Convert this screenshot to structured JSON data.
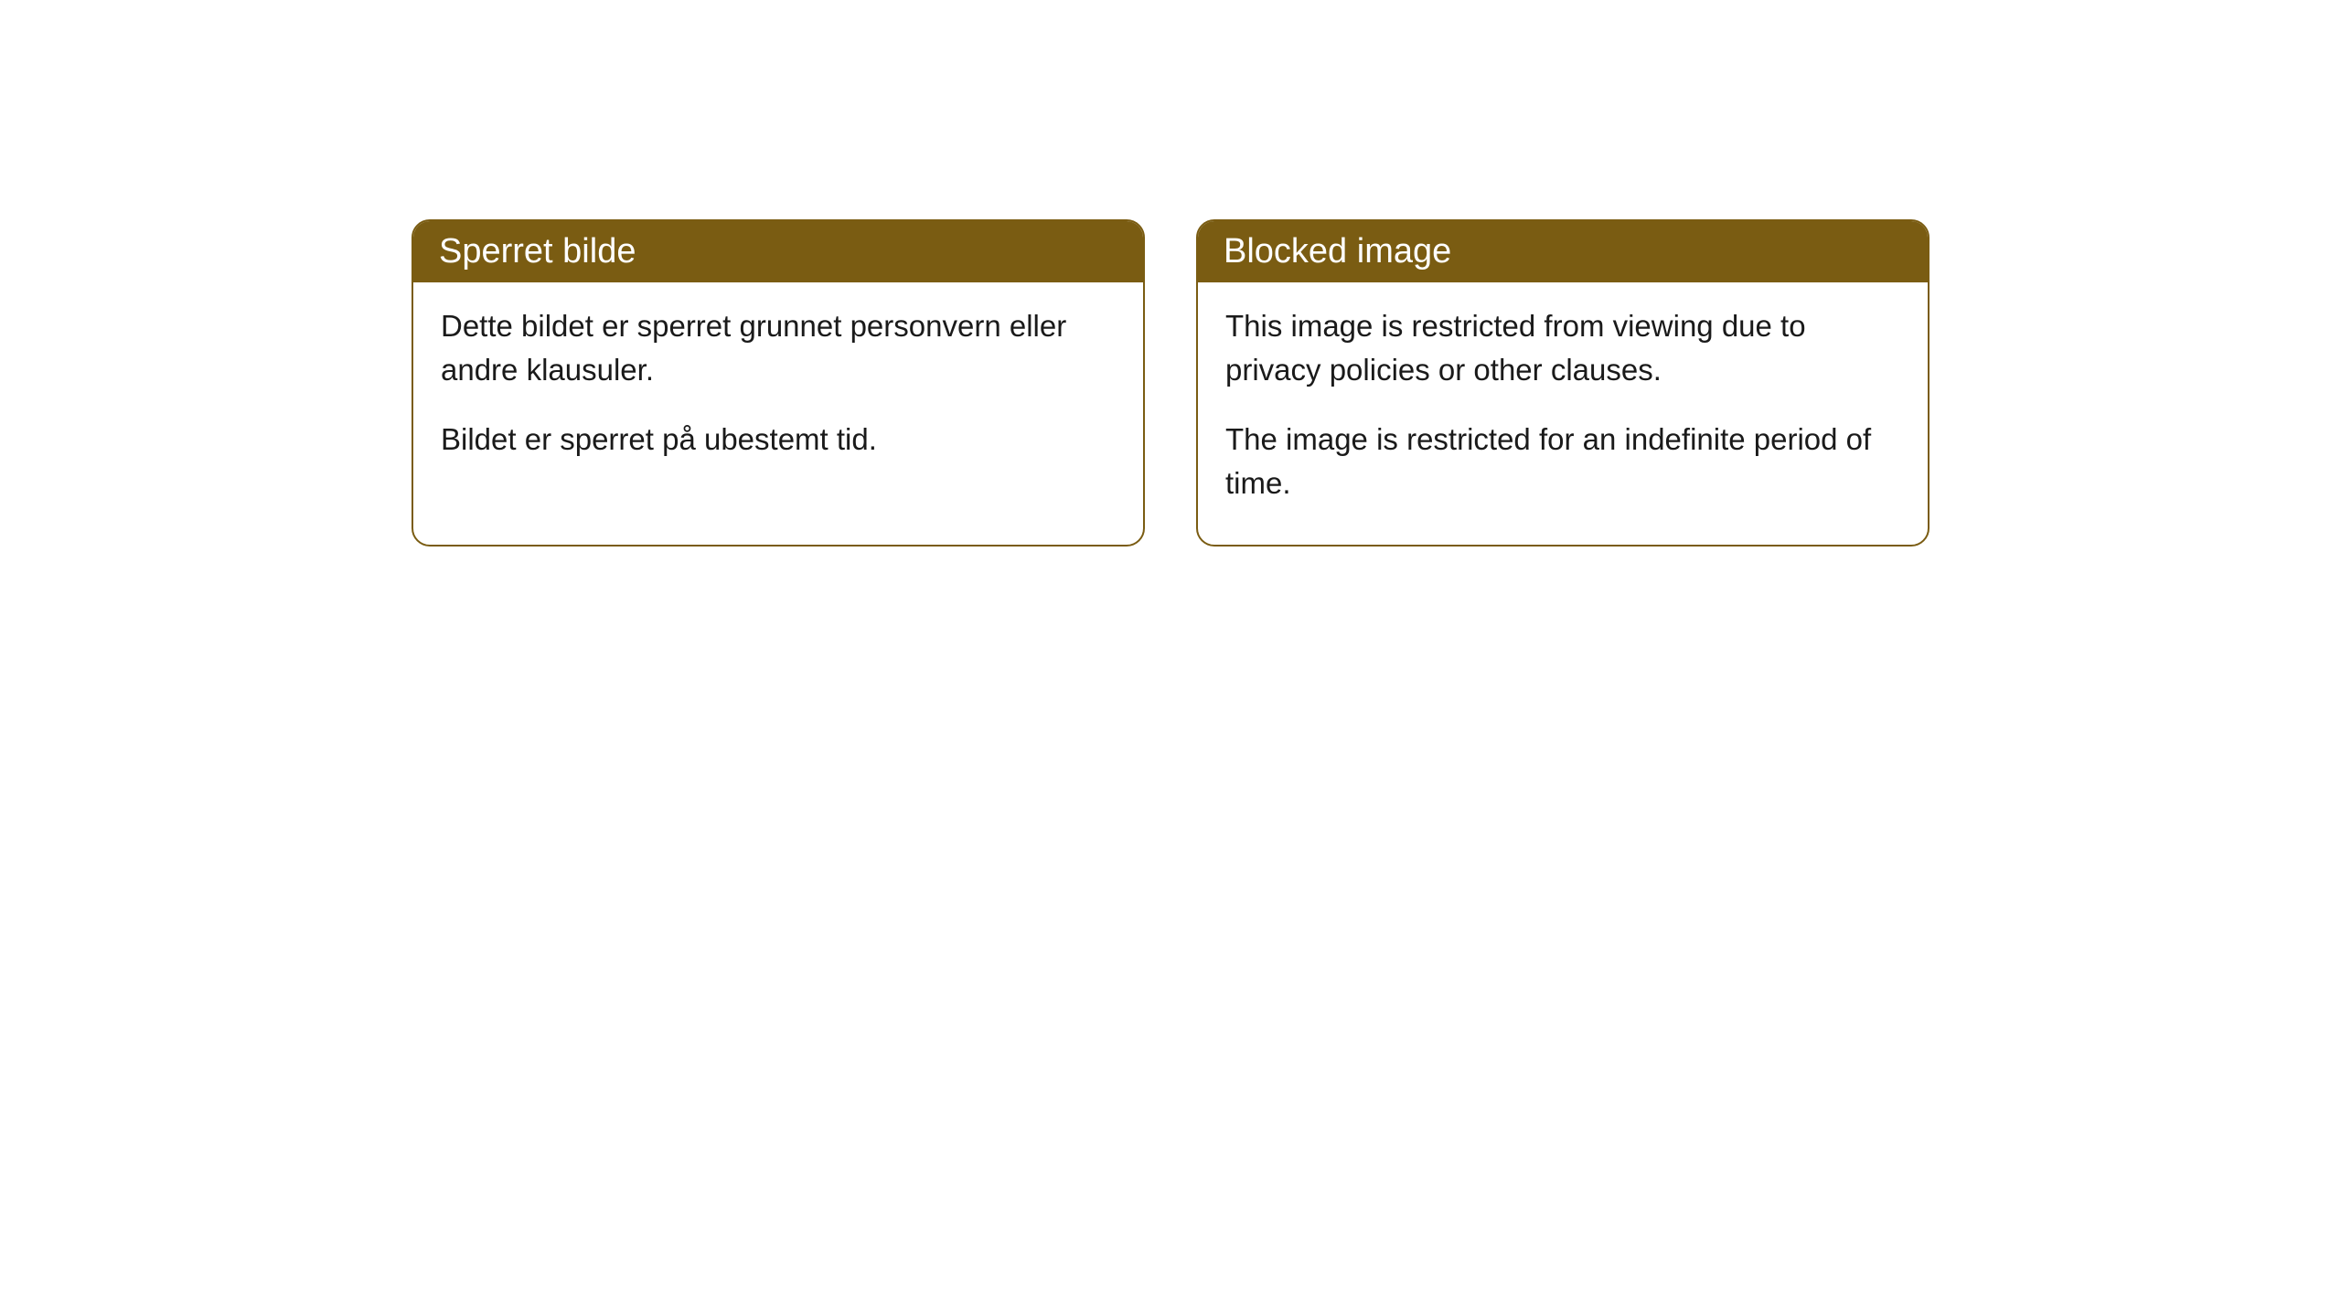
{
  "cards": [
    {
      "title": "Sperret bilde",
      "paragraph1": "Dette bildet er sperret grunnet personvern eller andre klausuler.",
      "paragraph2": "Bildet er sperret på ubestemt tid."
    },
    {
      "title": "Blocked image",
      "paragraph1": "This image is restricted from viewing due to privacy policies or other clauses.",
      "paragraph2": "The image is restricted for an indefinite period of time."
    }
  ],
  "styling": {
    "header_background_color": "#7a5c12",
    "header_text_color": "#ffffff",
    "border_color": "#7a5c12",
    "body_background_color": "#ffffff",
    "body_text_color": "#1a1a1a",
    "border_radius": "20px",
    "header_fontsize": 38,
    "body_fontsize": 33
  }
}
